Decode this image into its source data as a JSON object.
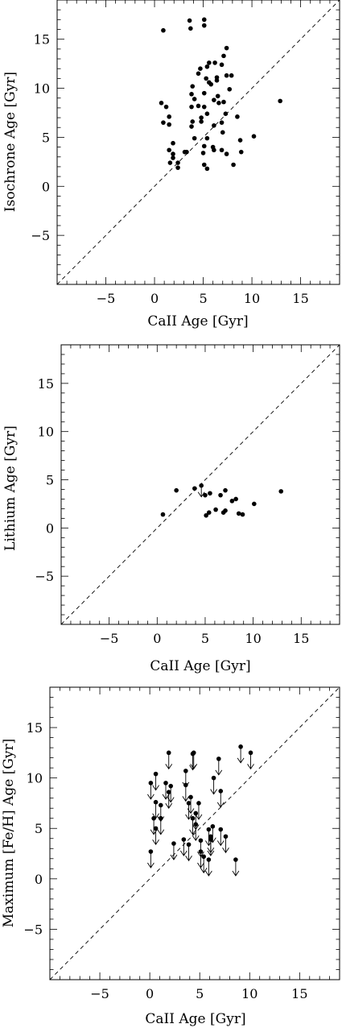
{
  "chart_data": [
    {
      "type": "scatter",
      "title": "",
      "xlabel": "CaII Age [Gyr]",
      "ylabel": "Isochrone Age [Gyr]",
      "xlim": [
        -10,
        19
      ],
      "ylim": [
        -10,
        19
      ],
      "xticks": [
        -5,
        0,
        5,
        10,
        15
      ],
      "yticks": [
        -5,
        0,
        5,
        10,
        15
      ],
      "reference_line": "1:1 dashed",
      "points": [
        {
          "x": 0.9,
          "y": 15.9
        },
        {
          "x": 3.6,
          "y": 16.9
        },
        {
          "x": 3.7,
          "y": 16.1
        },
        {
          "x": 5.1,
          "y": 17.0
        },
        {
          "x": 5.1,
          "y": 16.4
        },
        {
          "x": 0.7,
          "y": 8.5
        },
        {
          "x": 1.2,
          "y": 8.1
        },
        {
          "x": 1.5,
          "y": 7.1
        },
        {
          "x": 0.9,
          "y": 6.5
        },
        {
          "x": 1.5,
          "y": 6.3
        },
        {
          "x": 1.5,
          "y": 3.7
        },
        {
          "x": 1.9,
          "y": 4.4
        },
        {
          "x": 1.9,
          "y": 3.3
        },
        {
          "x": 1.6,
          "y": 2.4
        },
        {
          "x": 1.9,
          "y": 2.9
        },
        {
          "x": 2.4,
          "y": 2.4
        },
        {
          "x": 2.4,
          "y": 1.9
        },
        {
          "x": 3.1,
          "y": 3.5
        },
        {
          "x": 3.3,
          "y": 3.5
        },
        {
          "x": 3.8,
          "y": 9.4
        },
        {
          "x": 3.9,
          "y": 10.2
        },
        {
          "x": 4.1,
          "y": 8.9
        },
        {
          "x": 3.8,
          "y": 8.1
        },
        {
          "x": 4.5,
          "y": 8.2
        },
        {
          "x": 3.9,
          "y": 6.6
        },
        {
          "x": 3.8,
          "y": 6.1
        },
        {
          "x": 4.1,
          "y": 4.9
        },
        {
          "x": 4.5,
          "y": 11.5
        },
        {
          "x": 4.7,
          "y": 12.0
        },
        {
          "x": 4.8,
          "y": 7.0
        },
        {
          "x": 4.8,
          "y": 6.6
        },
        {
          "x": 5.1,
          "y": 4.1
        },
        {
          "x": 5.0,
          "y": 3.4
        },
        {
          "x": 5.1,
          "y": 2.2
        },
        {
          "x": 5.4,
          "y": 1.8
        },
        {
          "x": 5.4,
          "y": 4.9
        },
        {
          "x": 5.1,
          "y": 9.5
        },
        {
          "x": 5.4,
          "y": 12.2
        },
        {
          "x": 5.3,
          "y": 11.0
        },
        {
          "x": 5.6,
          "y": 10.6
        },
        {
          "x": 5.6,
          "y": 12.6
        },
        {
          "x": 5.4,
          "y": 7.4
        },
        {
          "x": 5.1,
          "y": 8.1
        },
        {
          "x": 5.8,
          "y": 10.4
        },
        {
          "x": 6.1,
          "y": 8.8
        },
        {
          "x": 6.1,
          "y": 6.2
        },
        {
          "x": 6.0,
          "y": 4.0
        },
        {
          "x": 6.1,
          "y": 3.7
        },
        {
          "x": 6.4,
          "y": 10.8
        },
        {
          "x": 6.2,
          "y": 12.6
        },
        {
          "x": 6.4,
          "y": 11.1
        },
        {
          "x": 6.9,
          "y": 12.4
        },
        {
          "x": 7.1,
          "y": 13.3
        },
        {
          "x": 7.4,
          "y": 14.1
        },
        {
          "x": 6.6,
          "y": 8.5
        },
        {
          "x": 6.5,
          "y": 9.2
        },
        {
          "x": 7.1,
          "y": 8.6
        },
        {
          "x": 6.9,
          "y": 6.5
        },
        {
          "x": 7.0,
          "y": 5.5
        },
        {
          "x": 6.9,
          "y": 3.7
        },
        {
          "x": 7.4,
          "y": 3.3
        },
        {
          "x": 7.3,
          "y": 7.4
        },
        {
          "x": 7.4,
          "y": 11.3
        },
        {
          "x": 7.7,
          "y": 9.9
        },
        {
          "x": 7.9,
          "y": 11.3
        },
        {
          "x": 8.1,
          "y": 2.2
        },
        {
          "x": 8.5,
          "y": 7.1
        },
        {
          "x": 8.8,
          "y": 4.7
        },
        {
          "x": 8.9,
          "y": 3.5
        },
        {
          "x": 10.2,
          "y": 5.1
        },
        {
          "x": 12.9,
          "y": 8.7
        }
      ]
    },
    {
      "type": "scatter",
      "title": "",
      "xlabel": "CaII Age [Gyr]",
      "ylabel": "Lithium Age [Gyr]",
      "xlim": [
        -10,
        19
      ],
      "ylim": [
        -10,
        19
      ],
      "xticks": [
        -5,
        0,
        5,
        10,
        15
      ],
      "yticks": [
        -5,
        0,
        5,
        10,
        15
      ],
      "reference_line": "1:1 dashed",
      "points": [
        {
          "x": 0.6,
          "y": 1.4
        },
        {
          "x": 2.0,
          "y": 3.9
        },
        {
          "x": 3.9,
          "y": 4.1
        },
        {
          "x": 4.6,
          "y": 4.4,
          "limit": "upper"
        },
        {
          "x": 5.0,
          "y": 3.4
        },
        {
          "x": 5.1,
          "y": 1.3
        },
        {
          "x": 5.4,
          "y": 1.6
        },
        {
          "x": 5.5,
          "y": 3.6
        },
        {
          "x": 6.1,
          "y": 1.9
        },
        {
          "x": 6.6,
          "y": 3.4
        },
        {
          "x": 6.9,
          "y": 1.6
        },
        {
          "x": 7.1,
          "y": 1.8
        },
        {
          "x": 7.1,
          "y": 3.9
        },
        {
          "x": 7.8,
          "y": 2.8
        },
        {
          "x": 8.2,
          "y": 3.0
        },
        {
          "x": 8.5,
          "y": 1.5
        },
        {
          "x": 8.9,
          "y": 1.4
        },
        {
          "x": 10.1,
          "y": 2.5
        },
        {
          "x": 12.9,
          "y": 3.8
        }
      ]
    },
    {
      "type": "scatter",
      "title": "",
      "xlabel": "CaII Age [Gyr]",
      "ylabel": "Maximum [Fe/H] Age [Gyr]",
      "xlim": [
        -10,
        19
      ],
      "ylim": [
        -10,
        19
      ],
      "xticks": [
        -5,
        0,
        5,
        10,
        15
      ],
      "yticks": [
        -5,
        0,
        5,
        10,
        15
      ],
      "reference_line": "1:1 dashed",
      "points_note": "all points are upper limits (downward arrows)",
      "points": [
        {
          "x": 0.1,
          "y": 9.5
        },
        {
          "x": 0.1,
          "y": 2.7
        },
        {
          "x": 0.6,
          "y": 10.4
        },
        {
          "x": 0.4,
          "y": 6.0
        },
        {
          "x": 0.6,
          "y": 7.6
        },
        {
          "x": 0.6,
          "y": 5.0
        },
        {
          "x": 1.1,
          "y": 7.3
        },
        {
          "x": 1.1,
          "y": 6.0
        },
        {
          "x": 1.6,
          "y": 9.5
        },
        {
          "x": 1.9,
          "y": 8.6
        },
        {
          "x": 1.9,
          "y": 12.5
        },
        {
          "x": 2.1,
          "y": 9.2
        },
        {
          "x": 2.4,
          "y": 3.5
        },
        {
          "x": 3.4,
          "y": 3.9
        },
        {
          "x": 3.6,
          "y": 10.7
        },
        {
          "x": 3.6,
          "y": 9.3
        },
        {
          "x": 3.9,
          "y": 3.4
        },
        {
          "x": 3.9,
          "y": 7.5
        },
        {
          "x": 4.1,
          "y": 8.1
        },
        {
          "x": 4.3,
          "y": 12.4
        },
        {
          "x": 4.4,
          "y": 12.5
        },
        {
          "x": 4.3,
          "y": 6.0
        },
        {
          "x": 4.6,
          "y": 6.5
        },
        {
          "x": 4.6,
          "y": 5.4
        },
        {
          "x": 4.9,
          "y": 7.5
        },
        {
          "x": 5.1,
          "y": 3.8
        },
        {
          "x": 5.1,
          "y": 2.7
        },
        {
          "x": 5.4,
          "y": 2.2
        },
        {
          "x": 5.9,
          "y": 1.9
        },
        {
          "x": 5.9,
          "y": 4.9
        },
        {
          "x": 6.1,
          "y": 4.2
        },
        {
          "x": 6.1,
          "y": 3.9
        },
        {
          "x": 6.3,
          "y": 5.2
        },
        {
          "x": 6.4,
          "y": 10.0
        },
        {
          "x": 6.9,
          "y": 11.9
        },
        {
          "x": 7.1,
          "y": 8.7
        },
        {
          "x": 7.1,
          "y": 4.9
        },
        {
          "x": 7.6,
          "y": 4.2
        },
        {
          "x": 8.6,
          "y": 1.9
        },
        {
          "x": 9.1,
          "y": 13.1
        },
        {
          "x": 10.1,
          "y": 12.5
        }
      ]
    }
  ]
}
